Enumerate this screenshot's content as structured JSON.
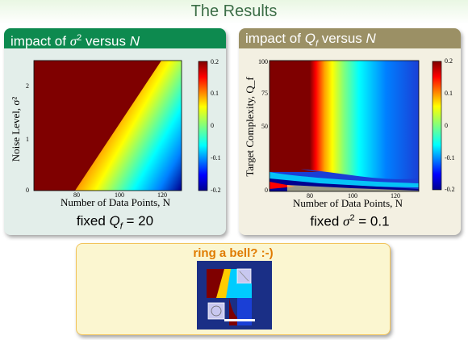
{
  "slide": {
    "title": "The Results"
  },
  "panels": [
    {
      "header_prefix": "impact of ",
      "header_param": "σ",
      "header_sup": "2",
      "header_mid": " versus ",
      "header_var": "N",
      "footer_prefix": "fixed ",
      "footer_param": "Q",
      "footer_sub": "f",
      "footer_value": " = 20",
      "header_color": "#0d8a4f",
      "body_color": "#e3eeea"
    },
    {
      "header_prefix": "impact of ",
      "header_param": "Q",
      "header_sub": "f",
      "header_mid": " versus ",
      "header_var": "N",
      "footer_prefix": "fixed ",
      "footer_param": "σ",
      "footer_sup": "2",
      "footer_value": " = 0.1",
      "header_color": "#9b9065",
      "body_color": "#f3f0e2"
    }
  ],
  "chart_data": [
    {
      "type": "heatmap",
      "xlabel": "Number of Data Points, N",
      "ylabel": "Noise Level, σ²",
      "x_ticks": [
        "80",
        "100",
        "120"
      ],
      "y_ticks": [
        "0",
        "1",
        "2"
      ],
      "xlim": [
        60,
        130
      ],
      "ylim": [
        0,
        2.5
      ],
      "colorbar_ticks": [
        "0.2",
        "0.1",
        "0",
        "-0.1",
        "-0.2"
      ],
      "colorbar_range": [
        -0.2,
        0.2
      ],
      "colormap": "jet"
    },
    {
      "type": "heatmap",
      "xlabel": "Number of Data Points, N",
      "ylabel": "Target Complexity, Q_f",
      "x_ticks": [
        "80",
        "100",
        "120"
      ],
      "y_ticks": [
        "0",
        "50",
        "75",
        "100"
      ],
      "xlim": [
        60,
        130
      ],
      "ylim": [
        0,
        100
      ],
      "colorbar_ticks": [
        "0.2",
        "0.1",
        "0",
        "-0.1",
        "-0.2"
      ],
      "colorbar_range": [
        -0.2,
        0.2
      ],
      "colormap": "jet"
    }
  ],
  "bottom_box": {
    "title": "ring a bell? :-)",
    "border_color": "#f2c35a",
    "bg_color": "#fbf6d0",
    "image_bg": "#1a2f86"
  }
}
